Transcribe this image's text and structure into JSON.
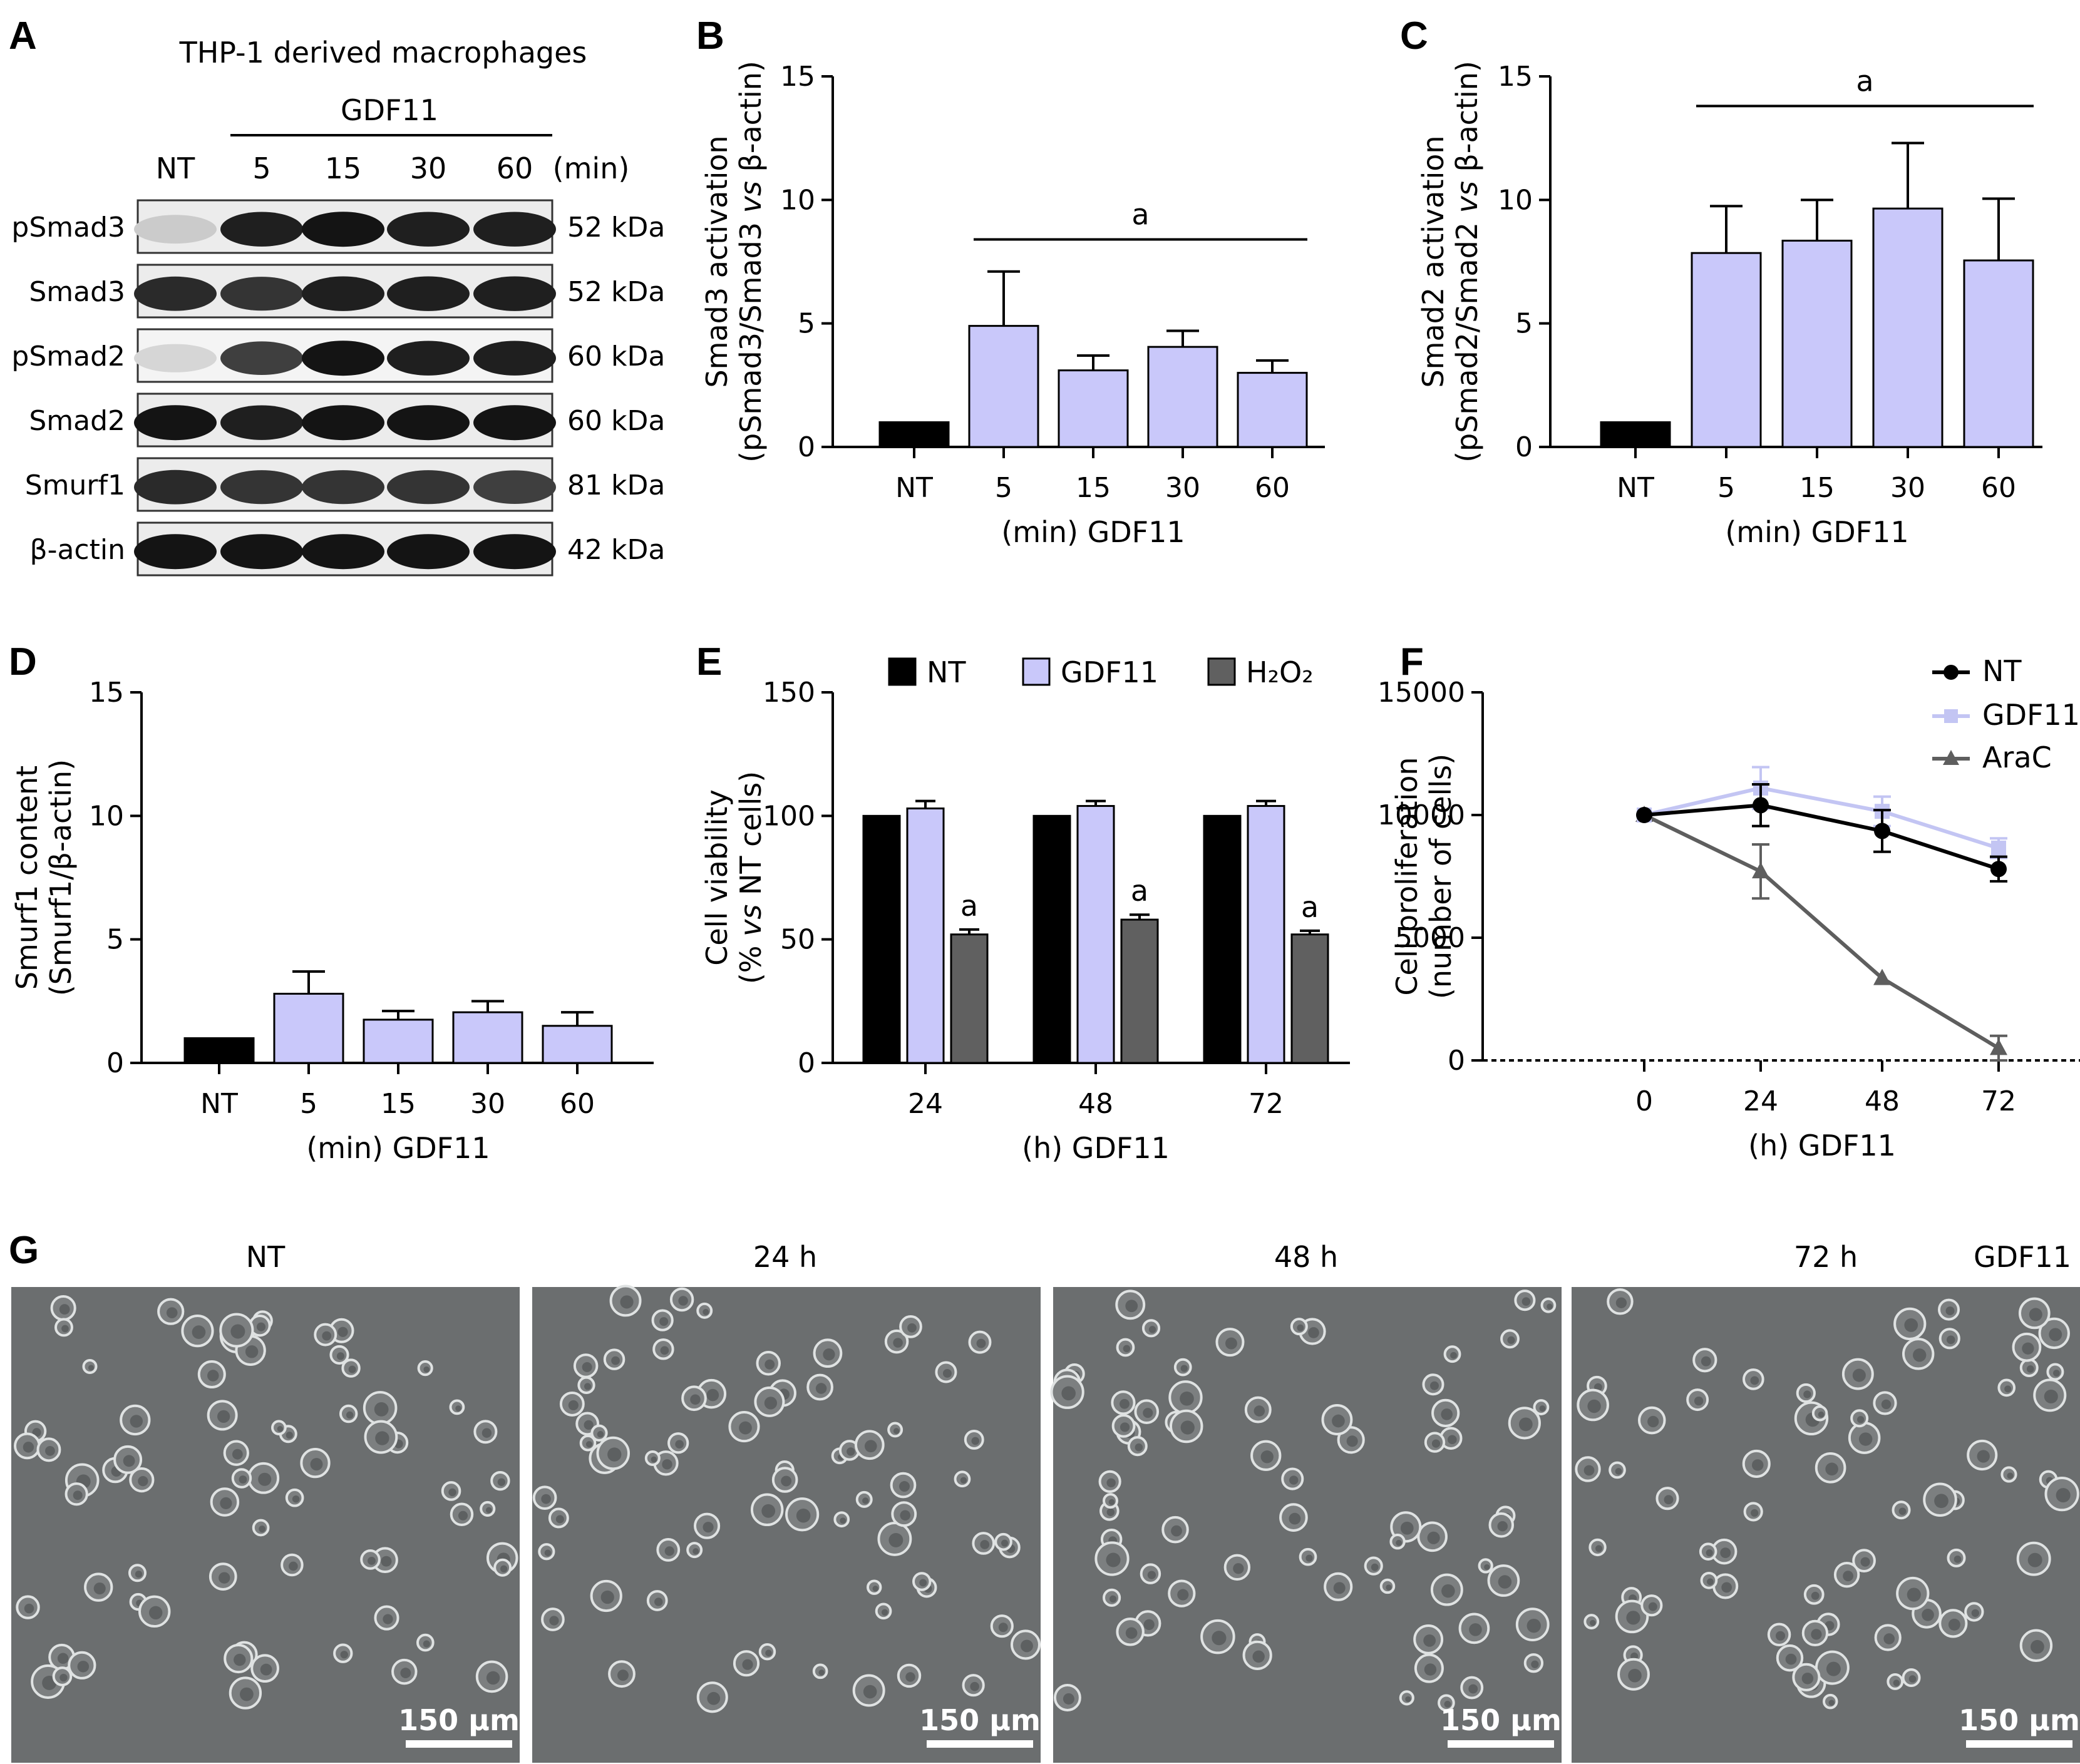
{
  "colors": {
    "nt": "#000000",
    "gdf11": "#c9c8fa",
    "h2o2": "#606060",
    "line_gdf11": "#c3c5f3",
    "line_arac": "#5e5e5e",
    "scalebar": "#ffffff"
  },
  "panels": {
    "a": "A",
    "b": "B",
    "c": "C",
    "d": "D",
    "e": "E",
    "f": "F",
    "g": "G"
  },
  "blot": {
    "title": "THP-1 derived macrophages",
    "treatment": "GDF11",
    "lanes": [
      "NT",
      "5",
      "15",
      "30",
      "60"
    ],
    "unit": "(min)",
    "rows": [
      {
        "label": "pSmad3",
        "kda": "52 kDa"
      },
      {
        "label": "Smad3",
        "kda": "52 kDa"
      },
      {
        "label": "pSmad2",
        "kda": "60 kDa"
      },
      {
        "label": "Smad2",
        "kda": "60 kDa"
      },
      {
        "label": "Smurf1",
        "kda": "81 kDa"
      },
      {
        "label": "β-actin",
        "kda": "42 kDa"
      }
    ]
  },
  "chart_data": [
    {
      "id": "B",
      "type": "bar",
      "categories": [
        "NT",
        "5",
        "15",
        "30",
        "60"
      ],
      "values": [
        1.0,
        4.9,
        3.1,
        4.05,
        3.0
      ],
      "errors": [
        0,
        2.2,
        0.6,
        0.65,
        0.5
      ],
      "ylabel": [
        "Smad3 activation",
        "(pSmad3/Smad3 vs β-actin)"
      ],
      "xlabel": "(min) GDF11",
      "ylim": [
        0,
        15
      ],
      "yticks": [
        "0",
        "5",
        "10",
        "15"
      ],
      "annotation": "a"
    },
    {
      "id": "C",
      "type": "bar",
      "categories": [
        "NT",
        "5",
        "15",
        "30",
        "60"
      ],
      "values": [
        1.0,
        7.85,
        8.35,
        9.65,
        7.55
      ],
      "errors": [
        0,
        1.9,
        1.65,
        2.65,
        2.5
      ],
      "ylabel": [
        "Smad2 activation",
        "(pSmad2/Smad2 vs β-actin)"
      ],
      "xlabel": "(min) GDF11",
      "ylim": [
        0,
        15
      ],
      "yticks": [
        "0",
        "5",
        "10",
        "15"
      ],
      "annotation": "a"
    },
    {
      "id": "D",
      "type": "bar",
      "categories": [
        "NT",
        "5",
        "15",
        "30",
        "60"
      ],
      "values": [
        1.0,
        2.8,
        1.75,
        2.05,
        1.5
      ],
      "errors": [
        0,
        0.9,
        0.35,
        0.45,
        0.55
      ],
      "ylabel": [
        "Smurf1 content",
        "(Smurf1/β-actin)"
      ],
      "xlabel": "(min) GDF11",
      "ylim": [
        0,
        15
      ],
      "yticks": [
        "0",
        "5",
        "10",
        "15"
      ]
    },
    {
      "id": "E",
      "type": "bar",
      "categories": [
        "24",
        "48",
        "72"
      ],
      "series": [
        {
          "name": "NT",
          "values": [
            100,
            100,
            100
          ],
          "errors": [
            0,
            0,
            0
          ]
        },
        {
          "name": "GDF11",
          "values": [
            103,
            104,
            104
          ],
          "errors": [
            3,
            2,
            2
          ]
        },
        {
          "name": "H₂O₂",
          "values": [
            52,
            58,
            52
          ],
          "errors": [
            2,
            2,
            1.5
          ]
        }
      ],
      "ylabel": [
        "Cell viability",
        "(% vs NT cells)"
      ],
      "xlabel": "(h) GDF11",
      "ylim": [
        0,
        150
      ],
      "yticks": [
        "0",
        "50",
        "100",
        "150"
      ],
      "annotation": "a"
    },
    {
      "id": "F",
      "type": "line",
      "x": [
        "0",
        "24",
        "48",
        "72"
      ],
      "series": [
        {
          "name": "NT",
          "values": [
            10000,
            10400,
            9350,
            7800
          ],
          "errors": [
            0,
            850,
            850,
            500
          ]
        },
        {
          "name": "GDF11",
          "values": [
            10000,
            11100,
            10150,
            8650
          ],
          "errors": [
            0,
            850,
            600,
            400
          ]
        },
        {
          "name": "AraC",
          "values": [
            10000,
            7700,
            3350,
            500
          ],
          "errors": [
            0,
            1100,
            0,
            500
          ]
        }
      ],
      "ylabel": [
        "Cell proliferation",
        "(number of cells)"
      ],
      "xlabel": "(h) GDF11",
      "ylim": [
        0,
        15000
      ],
      "yticks": [
        "0",
        "5000",
        "10000",
        "15000"
      ]
    }
  ],
  "micrographs": {
    "labels": [
      "NT",
      "24 h",
      "48 h",
      "72 h"
    ],
    "extra_label": "GDF11",
    "scale": "150 μm"
  }
}
